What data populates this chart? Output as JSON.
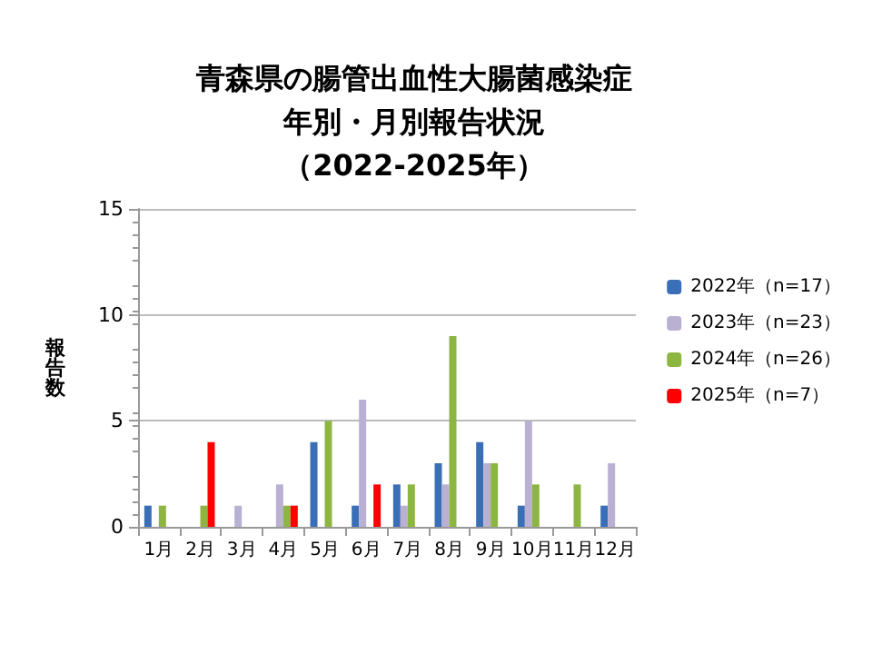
{
  "chart_data": {
    "type": "bar",
    "title": "青森県の腸管出血性大腸菌感染症",
    "subtitle": "年別・月別報告状況",
    "annotations": [
      "（2022-2025年）"
    ],
    "ylabel": "報告数",
    "categories": [
      "1月",
      "2月",
      "3月",
      "4月",
      "5月",
      "6月",
      "7月",
      "8月",
      "9月",
      "10月",
      "11月",
      "12月"
    ],
    "series": [
      {
        "name": "2022年（n=17）",
        "color": "#3a6fb8",
        "values": [
          1,
          0,
          0,
          0,
          4,
          1,
          2,
          3,
          4,
          1,
          0,
          1
        ]
      },
      {
        "name": "2023年（n=23）",
        "color": "#b9b0d2",
        "values": [
          0,
          0,
          1,
          2,
          0,
          6,
          1,
          2,
          3,
          5,
          0,
          3
        ]
      },
      {
        "name": "2024年（n=26）",
        "color": "#8db542",
        "values": [
          1,
          1,
          0,
          1,
          5,
          0,
          2,
          9,
          3,
          2,
          2,
          0
        ]
      },
      {
        "name": "2025年（n=7）",
        "color": "#ff0000",
        "values": [
          0,
          4,
          0,
          1,
          0,
          2,
          0,
          0,
          0,
          0,
          0,
          0
        ]
      }
    ],
    "ylim": [
      0,
      15
    ],
    "yticks": [
      0,
      5,
      10,
      15
    ],
    "grid": "y",
    "legend": "right"
  }
}
